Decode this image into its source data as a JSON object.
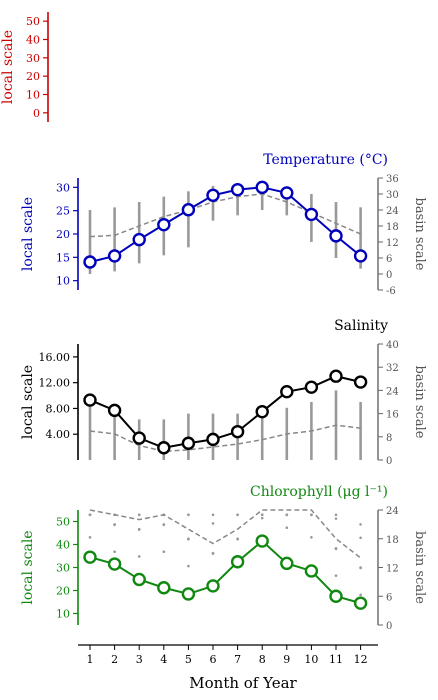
{
  "figure": {
    "xlabel": "Month of Year",
    "x_ticks": [
      "1",
      "2",
      "3",
      "4",
      "5",
      "6",
      "7",
      "8",
      "9",
      "10",
      "11",
      "12"
    ]
  },
  "chart_data": [
    {
      "type": "line",
      "title": "",
      "ylabel": "local scale",
      "ylim": [
        -5,
        55
      ],
      "left_ticks": [
        "0",
        "10",
        "20",
        "30",
        "40",
        "50"
      ],
      "color": "#cc0000",
      "x": [],
      "values": []
    },
    {
      "type": "line",
      "title": "Temperature (°C)",
      "ylabel": "local scale",
      "ylabel_right": "basin scale",
      "color": "#0000bb",
      "ylim": [
        8,
        32
      ],
      "left_ticks": [
        "10",
        "15",
        "20",
        "25",
        "30"
      ],
      "right_ylim": [
        -6,
        36
      ],
      "right_ticks": [
        "-6",
        "0",
        "6",
        "12",
        "18",
        "24",
        "30",
        "36"
      ],
      "x": [
        1,
        2,
        3,
        4,
        5,
        6,
        7,
        8,
        9,
        10,
        11,
        12
      ],
      "values": [
        14.0,
        15.3,
        18.8,
        22.0,
        25.2,
        28.3,
        29.5,
        30.0,
        28.8,
        24.2,
        19.6,
        15.3
      ],
      "basin_mean": [
        14,
        14.5,
        18,
        21.5,
        24,
        27,
        29,
        30,
        27,
        23,
        19,
        15
      ],
      "basin_min": [
        0,
        1,
        4,
        7,
        10,
        20,
        22,
        24,
        22,
        12,
        6,
        2
      ],
      "basin_max": [
        24,
        25,
        27,
        29,
        31,
        33,
        34,
        34,
        32,
        30,
        27,
        25
      ]
    },
    {
      "type": "line",
      "title": "Salinity",
      "ylabel": "local scale",
      "ylabel_right": "basin scale",
      "color": "#000000",
      "ylim": [
        0,
        18
      ],
      "left_ticks": [
        "4.00",
        "8.00",
        "12.00",
        "16.00"
      ],
      "right_ylim": [
        0,
        40
      ],
      "right_ticks": [
        "0",
        "8",
        "16",
        "24",
        "32",
        "40"
      ],
      "x": [
        1,
        2,
        3,
        4,
        5,
        6,
        7,
        8,
        9,
        10,
        11,
        12
      ],
      "values": [
        9.3,
        7.7,
        3.4,
        1.9,
        2.6,
        3.2,
        4.4,
        7.5,
        10.6,
        11.3,
        13.0,
        12.1
      ],
      "basin_mean": [
        10,
        9,
        5,
        3,
        3.5,
        4.5,
        5.5,
        7,
        9,
        10,
        12,
        11
      ],
      "basin_min": [
        0,
        0,
        0,
        0,
        0,
        0,
        0,
        0,
        0,
        0,
        0,
        0
      ],
      "basin_max": [
        20,
        18,
        14,
        14,
        16,
        16,
        16,
        16,
        18,
        20,
        24,
        20
      ]
    },
    {
      "type": "line",
      "title": "Chlorophyll (μg l⁻¹)",
      "ylabel": "local scale",
      "ylabel_right": "basin scale",
      "color": "#118811",
      "ylim": [
        5,
        55
      ],
      "left_ticks": [
        "10",
        "20",
        "30",
        "40",
        "50"
      ],
      "right_ylim": [
        0,
        24
      ],
      "right_ticks": [
        "0",
        "6",
        "12",
        "18",
        "24"
      ],
      "x": [
        1,
        2,
        3,
        4,
        5,
        6,
        7,
        8,
        9,
        10,
        11,
        12
      ],
      "values": [
        34.5,
        31.5,
        24.8,
        21.2,
        18.5,
        22.0,
        32.5,
        41.5,
        31.8,
        28.5,
        17.5,
        14.5
      ],
      "basin_mean": [
        26,
        23,
        22,
        23,
        20,
        17,
        20,
        30,
        28,
        26,
        18,
        14
      ]
    }
  ]
}
